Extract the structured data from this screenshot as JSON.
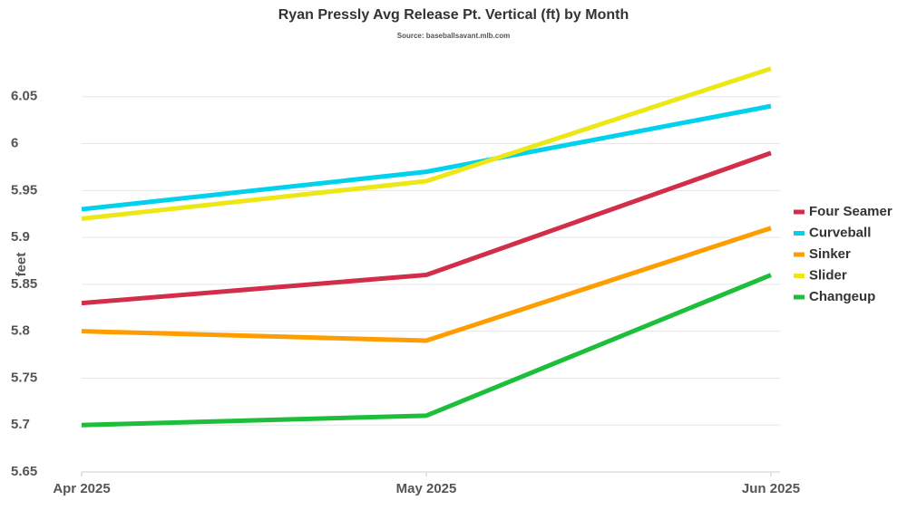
{
  "chart_data": {
    "type": "line",
    "title": "Ryan Pressly Avg Release Pt. Vertical (ft) by Month",
    "subtitle": "Source: baseballsavant.mlb.com",
    "y_label": "feet",
    "categories": [
      "Apr 2025",
      "May 2025",
      "Jun 2025"
    ],
    "series": [
      {
        "name": "Four Seamer",
        "color": "#d22d49",
        "values": [
          5.83,
          5.86,
          5.99
        ]
      },
      {
        "name": "Curveball",
        "color": "#00d1ed",
        "values": [
          5.93,
          5.97,
          6.04
        ]
      },
      {
        "name": "Sinker",
        "color": "#fe9d00",
        "values": [
          5.8,
          5.79,
          5.91
        ]
      },
      {
        "name": "Slider",
        "color": "#eee716",
        "values": [
          5.92,
          5.96,
          6.08
        ]
      },
      {
        "name": "Changeup",
        "color": "#1dbe3a",
        "values": [
          5.7,
          5.71,
          5.86
        ]
      }
    ],
    "ylim": [
      5.65,
      6.1
    ],
    "yticks": [
      5.65,
      5.7,
      5.75,
      5.8,
      5.85,
      5.9,
      5.95,
      6,
      6.05
    ],
    "grid": true,
    "legend": "right"
  }
}
